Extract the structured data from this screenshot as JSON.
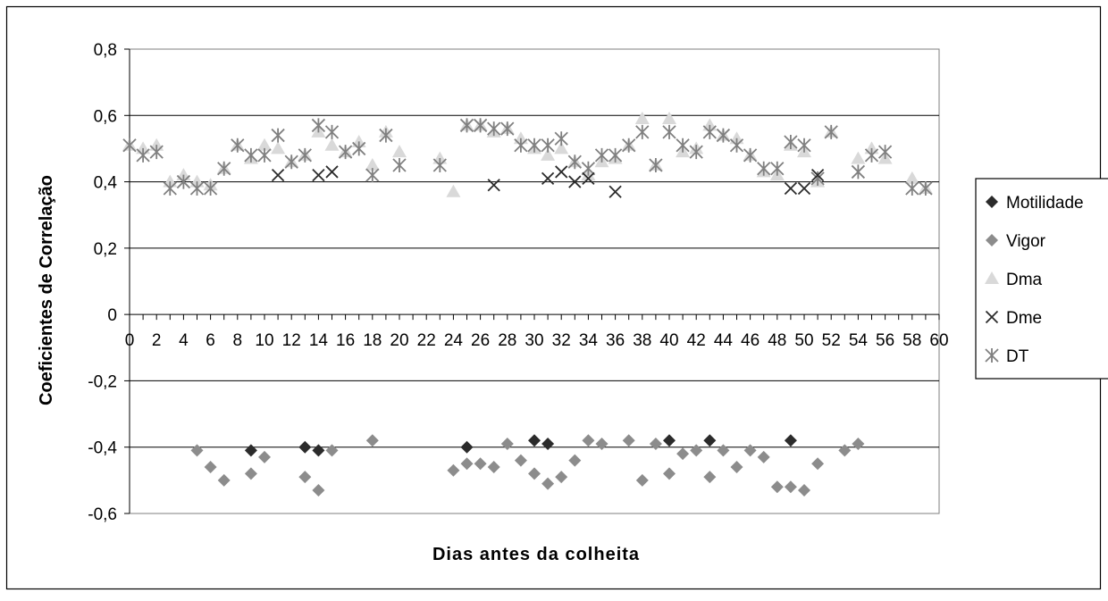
{
  "chart_data": {
    "type": "scatter",
    "xlabel": "Dias antes da colheita",
    "ylabel": "Coeficientes de Correlação",
    "xlim": [
      0,
      60
    ],
    "ylim": [
      -0.6,
      0.8
    ],
    "xticks": [
      "0",
      "2",
      "4",
      "6",
      "8",
      "10",
      "12",
      "14",
      "16",
      "18",
      "20",
      "22",
      "24",
      "26",
      "28",
      "30",
      "32",
      "34",
      "36",
      "38",
      "40",
      "42",
      "44",
      "46",
      "48",
      "50",
      "52",
      "54",
      "56",
      "58",
      "60"
    ],
    "yticks": [
      "0,8",
      "0,6",
      "0,4",
      "0,2",
      "0",
      "-0,2",
      "-0,4",
      "-0,6"
    ],
    "grid": "horizontal",
    "legend_position": "right",
    "series": [
      {
        "name": "Motilidade",
        "marker": "diamond",
        "color": "#2b2b2b",
        "points": [
          [
            9,
            -0.41
          ],
          [
            13,
            -0.4
          ],
          [
            14,
            -0.41
          ],
          [
            30,
            -0.38
          ],
          [
            31,
            -0.39
          ],
          [
            25,
            -0.4
          ],
          [
            40,
            -0.38
          ],
          [
            43,
            -0.38
          ],
          [
            49,
            -0.38
          ]
        ]
      },
      {
        "name": "Vigor",
        "marker": "diamond",
        "color": "#8c8c8c",
        "points": [
          [
            5,
            -0.41
          ],
          [
            6,
            -0.46
          ],
          [
            7,
            -0.5
          ],
          [
            9,
            -0.48
          ],
          [
            10,
            -0.43
          ],
          [
            13,
            -0.49
          ],
          [
            14,
            -0.53
          ],
          [
            15,
            -0.41
          ],
          [
            18,
            -0.38
          ],
          [
            24,
            -0.47
          ],
          [
            25,
            -0.45
          ],
          [
            26,
            -0.45
          ],
          [
            27,
            -0.46
          ],
          [
            28,
            -0.39
          ],
          [
            29,
            -0.44
          ],
          [
            30,
            -0.48
          ],
          [
            31,
            -0.51
          ],
          [
            32,
            -0.49
          ],
          [
            33,
            -0.44
          ],
          [
            34,
            -0.38
          ],
          [
            35,
            -0.39
          ],
          [
            37,
            -0.38
          ],
          [
            38,
            -0.5
          ],
          [
            39,
            -0.39
          ],
          [
            40,
            -0.48
          ],
          [
            41,
            -0.42
          ],
          [
            42,
            -0.41
          ],
          [
            43,
            -0.49
          ],
          [
            44,
            -0.41
          ],
          [
            45,
            -0.46
          ],
          [
            46,
            -0.41
          ],
          [
            47,
            -0.43
          ],
          [
            48,
            -0.52
          ],
          [
            49,
            -0.52
          ],
          [
            50,
            -0.53
          ],
          [
            51,
            -0.45
          ],
          [
            53,
            -0.41
          ],
          [
            54,
            -0.39
          ]
        ]
      },
      {
        "name": "Dma",
        "marker": "triangle",
        "color": "#d9d9d9",
        "points": [
          [
            0,
            0.51
          ],
          [
            1,
            0.5
          ],
          [
            2,
            0.51
          ],
          [
            3,
            0.4
          ],
          [
            4,
            0.42
          ],
          [
            5,
            0.4
          ],
          [
            6,
            0.39
          ],
          [
            7,
            0.44
          ],
          [
            8,
            0.51
          ],
          [
            9,
            0.47
          ],
          [
            10,
            0.51
          ],
          [
            11,
            0.5
          ],
          [
            12,
            0.46
          ],
          [
            13,
            0.48
          ],
          [
            14,
            0.55
          ],
          [
            15,
            0.51
          ],
          [
            16,
            0.49
          ],
          [
            17,
            0.52
          ],
          [
            18,
            0.45
          ],
          [
            19,
            0.55
          ],
          [
            20,
            0.49
          ],
          [
            23,
            0.47
          ],
          [
            24,
            0.37
          ],
          [
            25,
            0.57
          ],
          [
            26,
            0.57
          ],
          [
            27,
            0.55
          ],
          [
            28,
            0.56
          ],
          [
            29,
            0.53
          ],
          [
            30,
            0.5
          ],
          [
            31,
            0.48
          ],
          [
            32,
            0.5
          ],
          [
            33,
            0.46
          ],
          [
            34,
            0.42
          ],
          [
            35,
            0.46
          ],
          [
            36,
            0.47
          ],
          [
            37,
            0.51
          ],
          [
            38,
            0.59
          ],
          [
            39,
            0.45
          ],
          [
            40,
            0.59
          ],
          [
            41,
            0.49
          ],
          [
            42,
            0.5
          ],
          [
            43,
            0.57
          ],
          [
            44,
            0.54
          ],
          [
            45,
            0.53
          ],
          [
            46,
            0.48
          ],
          [
            47,
            0.43
          ],
          [
            48,
            0.42
          ],
          [
            49,
            0.51
          ],
          [
            50,
            0.49
          ],
          [
            51,
            0.4
          ],
          [
            52,
            0.55
          ],
          [
            54,
            0.47
          ],
          [
            55,
            0.5
          ],
          [
            56,
            0.47
          ],
          [
            58,
            0.41
          ],
          [
            59,
            0.38
          ]
        ]
      },
      {
        "name": "Dme",
        "marker": "x",
        "color": "#2b2b2b",
        "points": [
          [
            11,
            0.42
          ],
          [
            14,
            0.42
          ],
          [
            15,
            0.43
          ],
          [
            27,
            0.39
          ],
          [
            31,
            0.41
          ],
          [
            32,
            0.43
          ],
          [
            33,
            0.4
          ],
          [
            34,
            0.41
          ],
          [
            36,
            0.37
          ],
          [
            49,
            0.38
          ],
          [
            50,
            0.38
          ],
          [
            51,
            0.42
          ]
        ]
      },
      {
        "name": "DT",
        "marker": "asterisk",
        "color": "#808080",
        "points": [
          [
            0,
            0.51
          ],
          [
            1,
            0.48
          ],
          [
            2,
            0.49
          ],
          [
            3,
            0.38
          ],
          [
            4,
            0.4
          ],
          [
            5,
            0.38
          ],
          [
            6,
            0.38
          ],
          [
            7,
            0.44
          ],
          [
            8,
            0.51
          ],
          [
            9,
            0.48
          ],
          [
            10,
            0.48
          ],
          [
            11,
            0.54
          ],
          [
            12,
            0.46
          ],
          [
            13,
            0.48
          ],
          [
            14,
            0.57
          ],
          [
            15,
            0.55
          ],
          [
            16,
            0.49
          ],
          [
            17,
            0.5
          ],
          [
            18,
            0.42
          ],
          [
            19,
            0.54
          ],
          [
            20,
            0.45
          ],
          [
            23,
            0.45
          ],
          [
            25,
            0.57
          ],
          [
            26,
            0.57
          ],
          [
            27,
            0.56
          ],
          [
            28,
            0.56
          ],
          [
            29,
            0.51
          ],
          [
            30,
            0.51
          ],
          [
            31,
            0.51
          ],
          [
            32,
            0.53
          ],
          [
            33,
            0.46
          ],
          [
            34,
            0.44
          ],
          [
            35,
            0.48
          ],
          [
            36,
            0.48
          ],
          [
            37,
            0.51
          ],
          [
            38,
            0.55
          ],
          [
            39,
            0.45
          ],
          [
            40,
            0.55
          ],
          [
            41,
            0.51
          ],
          [
            42,
            0.49
          ],
          [
            43,
            0.55
          ],
          [
            44,
            0.54
          ],
          [
            45,
            0.51
          ],
          [
            46,
            0.48
          ],
          [
            47,
            0.44
          ],
          [
            48,
            0.44
          ],
          [
            49,
            0.52
          ],
          [
            50,
            0.51
          ],
          [
            51,
            0.41
          ],
          [
            52,
            0.55
          ],
          [
            54,
            0.43
          ],
          [
            55,
            0.48
          ],
          [
            56,
            0.49
          ],
          [
            58,
            0.38
          ],
          [
            59,
            0.38
          ]
        ]
      }
    ]
  }
}
